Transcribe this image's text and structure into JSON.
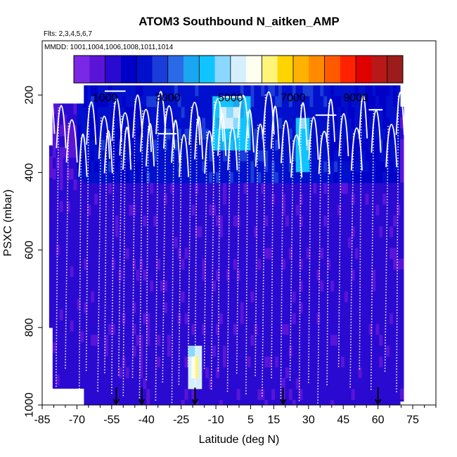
{
  "chart_data": {
    "type": "heatmap",
    "title": "ATOM3 Southbound N_aitken_AMP",
    "subtitle_flights": "Flts: 2,3,4,5,6,7",
    "subtitle_dates": "MMDD: 1001,1004,1006,1008,1011,1014",
    "xlabel": "Latitude (deg N)",
    "ylabel": "PSXC (mbar)",
    "xlim": [
      -85,
      85
    ],
    "ylim": [
      1000,
      60
    ],
    "x_ticks": [
      -85,
      -70,
      -55,
      -40,
      -25,
      -10,
      5,
      15,
      30,
      45,
      60,
      75
    ],
    "y_ticks": [
      200,
      400,
      600,
      800,
      1000
    ],
    "colorbar": {
      "range": [
        0,
        10500
      ],
      "tick_values": [
        1000,
        3000,
        5000,
        7000,
        9000
      ],
      "tick_labels": [
        "1000",
        "3000",
        "5000",
        "7000",
        "9000"
      ],
      "colors": [
        "#7a28e6",
        "#5a14d8",
        "#2a0ad0",
        "#0000c8",
        "#0010cc",
        "#1a3cd8",
        "#2a6ae6",
        "#1aa6f0",
        "#10c4ff",
        "#8ad8ff",
        "#d6efff",
        "#fffff0",
        "#fff37a",
        "#ffd400",
        "#ffb200",
        "#ff8a00",
        "#ff5a00",
        "#ff2200",
        "#e00000",
        "#b81818",
        "#9c1c1c"
      ]
    },
    "features": [
      {
        "name": "background",
        "value": 1000
      },
      {
        "name": "upper troposphere band",
        "lat_range": [
          -70,
          70
        ],
        "p_range": [
          170,
          420
        ],
        "value": 2300
      },
      {
        "name": "tropical plume",
        "lat_range": [
          -12,
          5
        ],
        "p_range": [
          210,
          350
        ],
        "value": 4200
      },
      {
        "name": "tropical core",
        "lat_range": [
          -9,
          1
        ],
        "p_range": [
          240,
          300
        ],
        "value": 5000
      },
      {
        "name": "north tropics spot",
        "lat_range": [
          25,
          30
        ],
        "p_range": [
          250,
          400
        ],
        "value": 4300
      },
      {
        "name": "southern boundary layer",
        "lat_range": [
          -22,
          -16
        ],
        "p_range": [
          860,
          950
        ],
        "value": 5200
      },
      {
        "name": "southern boundary layer core",
        "lat_range": [
          -21,
          -17
        ],
        "p_range": [
          880,
          940
        ],
        "value": 6000
      }
    ],
    "profile_latitudes": [
      -83,
      -79,
      -75,
      -69,
      -66,
      -61,
      -58,
      -55,
      -52,
      -50,
      -46,
      -43,
      -40,
      -36,
      -33,
      -29,
      -26,
      -22,
      -19,
      -15,
      -12,
      -9,
      -5,
      -1,
      3,
      7,
      10,
      14,
      18,
      22,
      26,
      30,
      34,
      38,
      43,
      48,
      52,
      57,
      63,
      68
    ],
    "marker_latitudes": [
      -53,
      -42,
      -19,
      19,
      60
    ]
  }
}
